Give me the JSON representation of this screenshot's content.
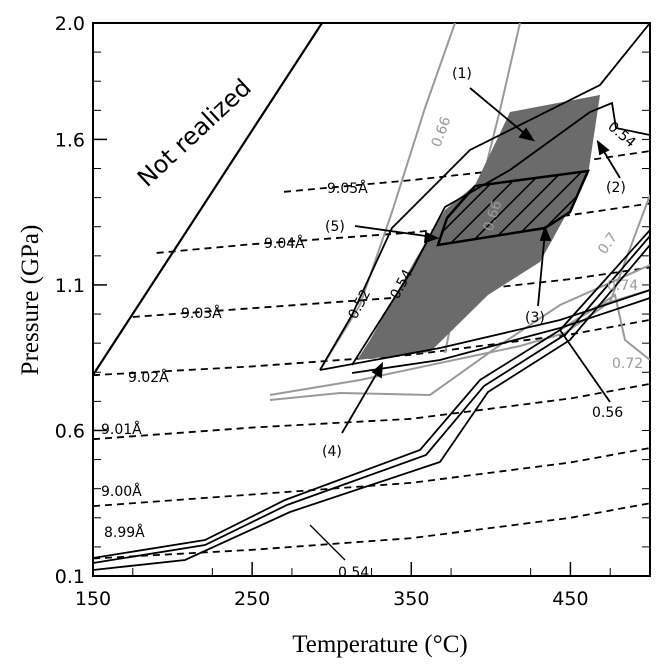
{
  "chart_data": {
    "type": "line",
    "xlabel": "Temperature (°C)",
    "ylabel": "Pressure (GPa)",
    "xlim": [
      150,
      500
    ],
    "ylim": [
      0.1,
      2.0
    ],
    "x_ticks": [
      "150",
      "250",
      "350",
      "450"
    ],
    "y_ticks": [
      "0.1",
      "0.6",
      "1.1",
      "1.6",
      "2.0"
    ],
    "region_label": "Not realized",
    "pointer_labels": [
      "(1)",
      "(2)",
      "(3)",
      "(4)",
      "(5)"
    ],
    "cell_parameter_isolines": [
      {
        "label": "8.99Å",
        "points": [
          [
            150,
            0.16
          ],
          [
            250,
            0.19
          ],
          [
            350,
            0.23
          ],
          [
            450,
            0.3
          ],
          [
            500,
            0.35
          ]
        ]
      },
      {
        "label": "9.00Å",
        "points": [
          [
            150,
            0.34
          ],
          [
            250,
            0.38
          ],
          [
            350,
            0.42
          ],
          [
            450,
            0.49
          ],
          [
            500,
            0.54
          ]
        ]
      },
      {
        "label": "9.01Å",
        "points": [
          [
            150,
            0.57
          ],
          [
            250,
            0.61
          ],
          [
            350,
            0.64
          ],
          [
            450,
            0.71
          ],
          [
            500,
            0.76
          ]
        ]
      },
      {
        "label": "9.02Å",
        "points": [
          [
            150,
            0.79
          ],
          [
            250,
            0.82
          ],
          [
            350,
            0.86
          ],
          [
            450,
            0.93
          ],
          [
            500,
            0.98
          ]
        ]
      },
      {
        "label": "9.03Å",
        "points": [
          [
            175,
            0.99
          ],
          [
            250,
            1.02
          ],
          [
            350,
            1.06
          ],
          [
            450,
            1.12
          ],
          [
            500,
            1.16
          ]
        ]
      },
      {
        "label": "9.04Å",
        "points": [
          [
            190,
            1.21
          ],
          [
            250,
            1.24
          ],
          [
            350,
            1.28
          ],
          [
            450,
            1.34
          ],
          [
            500,
            1.38
          ]
        ]
      },
      {
        "label": "9.05Å",
        "points": [
          [
            270,
            1.42
          ],
          [
            350,
            1.46
          ],
          [
            450,
            1.52
          ],
          [
            500,
            1.56
          ]
        ]
      }
    ],
    "boundary_label": "0.54",
    "grey_contours": [
      "0.66",
      "0.66",
      "0.7",
      "0.72",
      "0.74"
    ],
    "black_contours": [
      "0.52",
      "0.54",
      "0.54",
      "0.56"
    ]
  }
}
